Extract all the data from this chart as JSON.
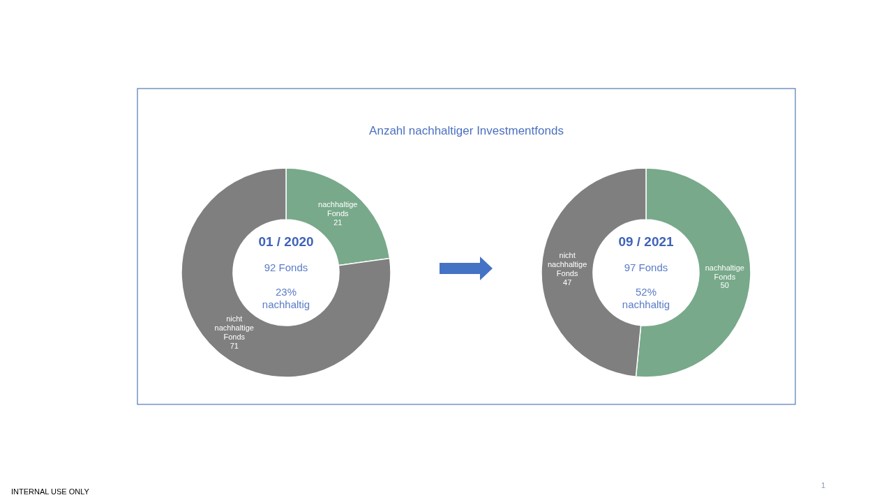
{
  "chart_data": [
    {
      "type": "donut",
      "title": "Anzahl nachhaltiger Investmentfonds",
      "categories": [
        "nachhaltige Fonds",
        "nicht nachhaltige Fonds"
      ],
      "values": [
        21,
        71
      ],
      "colors": [
        "#78a98a",
        "#7f7f7f"
      ],
      "data_labels": true,
      "annotations": [
        "01 / 2020",
        "92 Fonds",
        "23% nachhaltig",
        "INTERNAL USE ONLY"
      ]
    },
    {
      "type": "donut",
      "categories": [
        "nachhaltige Fonds",
        "nicht nachhaltige Fonds"
      ],
      "values": [
        50,
        47
      ],
      "colors": [
        "#78a98a",
        "#7f7f7f"
      ],
      "data_labels": true,
      "annotations": [
        "09 / 2021",
        "97 Fonds",
        "52% nachhaltig",
        "1"
      ]
    }
  ]
}
